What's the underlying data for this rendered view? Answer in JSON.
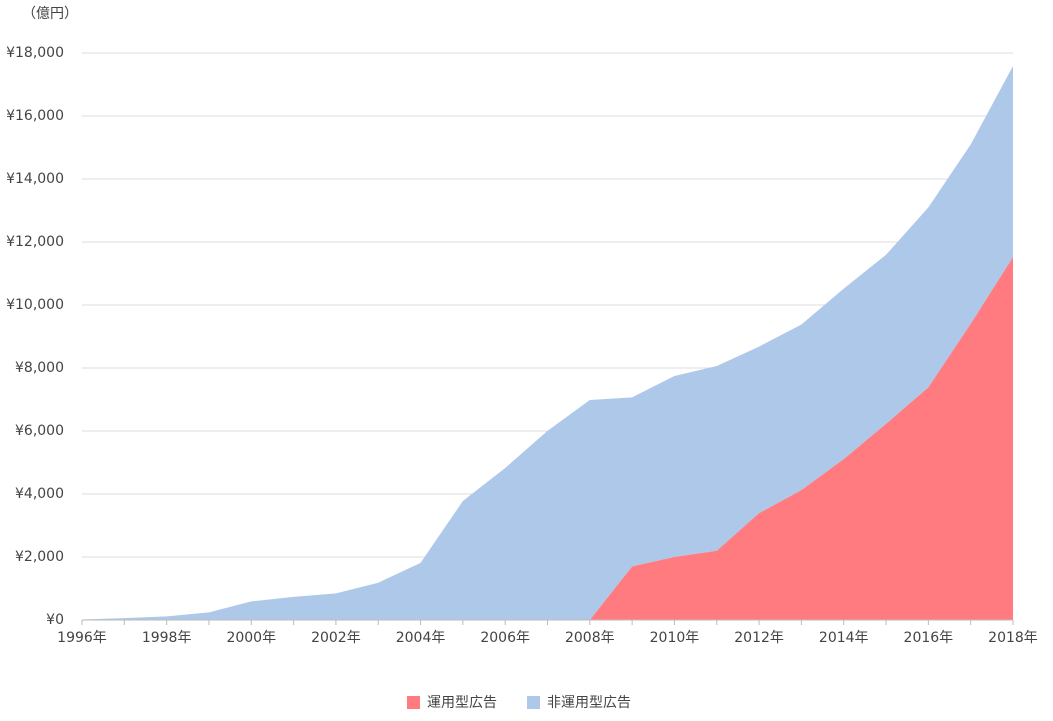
{
  "chart_data": {
    "type": "stacked-area",
    "y_unit_label": "（億円）",
    "categories": [
      "1996年",
      null,
      "1998年",
      null,
      "2000年",
      null,
      "2002年",
      null,
      "2004年",
      null,
      "2006年",
      null,
      "2008年",
      null,
      "2010年",
      null,
      "2012年",
      null,
      "2014年",
      null,
      "2016年",
      null,
      "2018年"
    ],
    "series": [
      {
        "name": "運用型広告",
        "color": "#ff7b80",
        "values": [
          null,
          null,
          null,
          null,
          null,
          null,
          null,
          null,
          null,
          null,
          null,
          null,
          0,
          1700,
          2000,
          2200,
          3391,
          4122,
          5106,
          6226,
          7383,
          9400,
          11518
        ]
      },
      {
        "name": "非運用型広告",
        "color": "#aec8ea",
        "values": [
          16,
          60,
          114,
          241,
          590,
          735,
          845,
          1183,
          1814,
          3777,
          4826,
          6003,
          6983,
          5369,
          5747,
          5862,
          5289,
          5259,
          5413,
          5368,
          5717,
          5694,
          6071
        ]
      }
    ],
    "ylim": [
      0,
      18000
    ],
    "yticks": [
      {
        "value": 0,
        "label": "¥0"
      },
      {
        "value": 2000,
        "label": "¥2,000"
      },
      {
        "value": 4000,
        "label": "¥4,000"
      },
      {
        "value": 6000,
        "label": "¥6,000"
      },
      {
        "value": 8000,
        "label": "¥8,000"
      },
      {
        "value": 10000,
        "label": "¥10,000"
      },
      {
        "value": 12000,
        "label": "¥12,000"
      },
      {
        "value": 14000,
        "label": "¥14,000"
      },
      {
        "value": 16000,
        "label": "¥16,000"
      },
      {
        "value": 18000,
        "label": "¥18,000"
      }
    ],
    "grid": true
  }
}
